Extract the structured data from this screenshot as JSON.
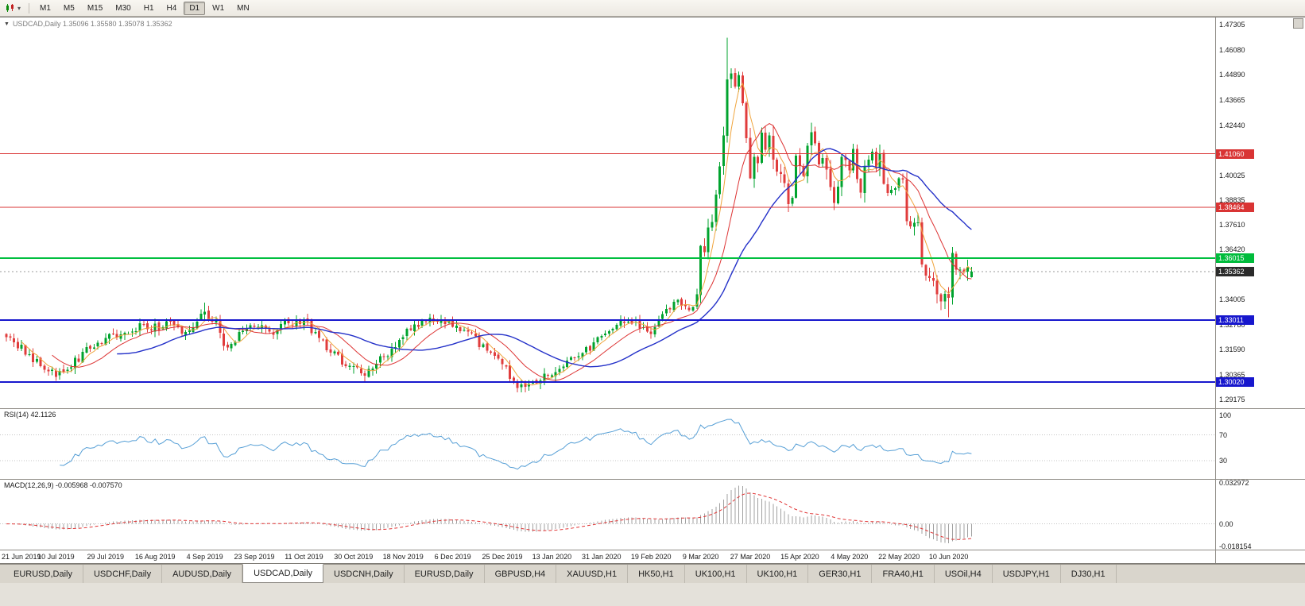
{
  "toolbar": {
    "timeframes": [
      "M1",
      "M5",
      "M15",
      "M30",
      "H1",
      "H4",
      "D1",
      "W1",
      "MN"
    ],
    "active_timeframe": "D1"
  },
  "chart": {
    "title_text": "USDCAD,Daily 1.35096 1.35580 1.35078 1.35362",
    "symbol": "USDCAD",
    "period": "Daily",
    "open": "1.35096",
    "high": "1.35580",
    "low": "1.35078",
    "close": "1.35362"
  },
  "price_axis": {
    "ticks": [
      "1.47305",
      "1.46080",
      "1.44890",
      "1.43665",
      "1.42440",
      "1.40025",
      "1.38835",
      "1.37610",
      "1.36420",
      "1.34005",
      "1.32780",
      "1.31590",
      "1.30365",
      "1.29175"
    ],
    "line_labels": [
      {
        "text": "1.41060",
        "value": 1.4106,
        "color": "#d93434"
      },
      {
        "text": "1.38464",
        "value": 1.38464,
        "color": "#d93434"
      },
      {
        "text": "1.36015",
        "value": 1.36015,
        "color": "#00bc3c"
      },
      {
        "text": "1.33011",
        "value": 1.33011,
        "color": "#1717cd"
      },
      {
        "text": "1.30020",
        "value": 1.3002,
        "color": "#1717cd"
      }
    ],
    "current": {
      "text": "1.35362",
      "value": 1.35362,
      "color": "#2b2b2b"
    }
  },
  "date_axis": {
    "step_days": 13,
    "labels": [
      "21 Jun 2019",
      "10 Jul 2019",
      "29 Jul 2019",
      "16 Aug 2019",
      "4 Sep 2019",
      "23 Sep 2019",
      "11 Oct 2019",
      "30 Oct 2019",
      "18 Nov 2019",
      "6 Dec 2019",
      "25 Dec 2019",
      "13 Jan 2020",
      "31 Jan 2020",
      "19 Feb 2020",
      "9 Mar 2020",
      "27 Mar 2020",
      "15 Apr 2020",
      "4 May 2020",
      "22 May 2020",
      "10 Jun 2020"
    ]
  },
  "rsi": {
    "label": "RSI(14) 42.1126",
    "period": 14,
    "current": 42.1126,
    "color": "#569fd6",
    "levels": [
      70,
      30
    ],
    "axis_labels": [
      {
        "text": "100",
        "value": 100
      },
      {
        "text": "70",
        "value": 70
      },
      {
        "text": "30",
        "value": 30
      }
    ]
  },
  "macd": {
    "label": "MACD(12,26,9) -0.005968 -0.007570",
    "main": -0.005968,
    "signal": -0.00757,
    "max": 0.032972,
    "min": -0.018154,
    "hist_color": "#a0a0a0",
    "signal_color": "#e03434",
    "axis_labels": [
      {
        "text": "0.032972",
        "value": 0.032972
      },
      {
        "text": "0.00",
        "value": 0
      },
      {
        "text": "-0.018154",
        "value": -0.018154
      }
    ]
  },
  "tabs": {
    "active_index": 3,
    "items": [
      "EURUSD,Daily",
      "USDCHF,Daily",
      "AUDUSD,Daily",
      "USDCAD,Daily",
      "USDCNH,Daily",
      "EURUSD,Daily",
      "GBPUSD,H4",
      "XAUUSD,H1",
      "HK50,H1",
      "UK100,H1",
      "UK100,H1",
      "GER30,H1",
      "FRA40,H1",
      "USOil,H4",
      "USDJPY,H1",
      "DJ30,H1"
    ]
  },
  "chart_data": {
    "type": "candlestick",
    "title": "USDCAD Daily",
    "symbol": "USDCAD",
    "timeframe": "Daily",
    "days": 254,
    "seed": 20200619,
    "price_top": 1.4765,
    "price_bottom": 1.2875,
    "current_price": 1.35362,
    "last_ohlc": {
      "open": 1.35096,
      "high": 1.3558,
      "low": 1.35078,
      "close": 1.35362
    },
    "colors": {
      "up": "#00a32e",
      "down": "#e03c3c",
      "current_line": "#9a9a9a"
    },
    "anchors": [
      [
        0,
        1.322
      ],
      [
        4,
        1.3165
      ],
      [
        9,
        1.3075
      ],
      [
        13,
        1.3045
      ],
      [
        18,
        1.3105
      ],
      [
        22,
        1.3165
      ],
      [
        26,
        1.321
      ],
      [
        31,
        1.323
      ],
      [
        35,
        1.328
      ],
      [
        39,
        1.3265
      ],
      [
        43,
        1.329
      ],
      [
        47,
        1.3245
      ],
      [
        52,
        1.333
      ],
      [
        55,
        1.3285
      ],
      [
        57,
        1.317
      ],
      [
        61,
        1.323
      ],
      [
        65,
        1.327
      ],
      [
        69,
        1.324
      ],
      [
        74,
        1.3295
      ],
      [
        78,
        1.33
      ],
      [
        82,
        1.321
      ],
      [
        86,
        1.313
      ],
      [
        91,
        1.306
      ],
      [
        94,
        1.3045
      ],
      [
        98,
        1.3115
      ],
      [
        101,
        1.316
      ],
      [
        104,
        1.323
      ],
      [
        108,
        1.329
      ],
      [
        112,
        1.331
      ],
      [
        117,
        1.328
      ],
      [
        121,
        1.324
      ],
      [
        125,
        1.317
      ],
      [
        130,
        1.309
      ],
      [
        133,
        1.299
      ],
      [
        136,
        1.2965
      ],
      [
        139,
        1.301
      ],
      [
        143,
        1.3055
      ],
      [
        147,
        1.3105
      ],
      [
        151,
        1.314
      ],
      [
        156,
        1.322
      ],
      [
        160,
        1.328
      ],
      [
        164,
        1.33
      ],
      [
        167,
        1.326
      ],
      [
        169,
        1.3225
      ],
      [
        172,
        1.331
      ],
      [
        175,
        1.34
      ],
      [
        177,
        1.337
      ],
      [
        179,
        1.333
      ],
      [
        181,
        1.3425
      ],
      [
        182,
        1.366
      ],
      [
        183,
        1.363
      ],
      [
        184,
        1.3745
      ],
      [
        185,
        1.378
      ],
      [
        186,
        1.391
      ],
      [
        187,
        1.405
      ],
      [
        188,
        1.42
      ],
      [
        189,
        1.446
      ],
      [
        190,
        1.449
      ],
      [
        191,
        1.443
      ],
      [
        192,
        1.4486
      ],
      [
        193,
        1.435
      ],
      [
        194,
        1.418
      ],
      [
        195,
        1.399
      ],
      [
        196,
        1.409
      ],
      [
        197,
        1.4062
      ],
      [
        198,
        1.421
      ],
      [
        199,
        1.413
      ],
      [
        200,
        1.42
      ],
      [
        201,
        1.408
      ],
      [
        202,
        1.402
      ],
      [
        203,
        1.401
      ],
      [
        204,
        1.396
      ],
      [
        205,
        1.386
      ],
      [
        206,
        1.389
      ],
      [
        207,
        1.409
      ],
      [
        208,
        1.404
      ],
      [
        209,
        1.4
      ],
      [
        210,
        1.415
      ],
      [
        211,
        1.421
      ],
      [
        212,
        1.416
      ],
      [
        213,
        1.406
      ],
      [
        214,
        1.409
      ],
      [
        215,
        1.403
      ],
      [
        216,
        1.395
      ],
      [
        217,
        1.387
      ],
      [
        218,
        1.394
      ],
      [
        219,
        1.409
      ],
      [
        220,
        1.407
      ],
      [
        221,
        1.403
      ],
      [
        222,
        1.413
      ],
      [
        223,
        1.398
      ],
      [
        224,
        1.392
      ],
      [
        225,
        1.404
      ],
      [
        226,
        1.408
      ],
      [
        227,
        1.411
      ],
      [
        228,
        1.403
      ],
      [
        229,
        1.411
      ],
      [
        230,
        1.396
      ],
      [
        231,
        1.392
      ],
      [
        232,
        1.393
      ],
      [
        233,
        1.394
      ],
      [
        234,
        1.399
      ],
      [
        235,
        1.398
      ],
      [
        236,
        1.378
      ],
      [
        237,
        1.375
      ],
      [
        238,
        1.377
      ],
      [
        239,
        1.378
      ],
      [
        240,
        1.357
      ],
      [
        241,
        1.352
      ],
      [
        242,
        1.35
      ],
      [
        243,
        1.349
      ],
      [
        244,
        1.342
      ],
      [
        245,
        1.339
      ],
      [
        246,
        1.343
      ],
      [
        247,
        1.341
      ],
      [
        248,
        1.362
      ],
      [
        249,
        1.354
      ],
      [
        250,
        1.3539
      ],
      [
        251,
        1.3537
      ],
      [
        252,
        1.356
      ],
      [
        253,
        1.35362
      ]
    ],
    "spikes": [
      {
        "day": 52,
        "high": 1.3385
      },
      {
        "day": 91,
        "low": 1.3042
      },
      {
        "day": 136,
        "low": 1.2951
      },
      {
        "day": 189,
        "high": 1.4668
      },
      {
        "day": 247,
        "low": 1.3315
      },
      {
        "day": 253,
        "open": 1.35096,
        "high": 1.3558,
        "low": 1.35078,
        "close": 1.35362
      }
    ],
    "moving_averages": [
      {
        "period": 5,
        "color": "#f0a43c",
        "width": 1
      },
      {
        "period": 13,
        "color": "#dd3434",
        "width": 1
      },
      {
        "period": 30,
        "color": "#2431c9",
        "width": 1.4
      }
    ],
    "hlines": [
      {
        "price": 1.4106,
        "color": "#d93434",
        "width": 1
      },
      {
        "price": 1.38464,
        "color": "#d93434",
        "width": 1
      },
      {
        "price": 1.36015,
        "color": "#00bf3f",
        "width": 2
      },
      {
        "price": 1.33011,
        "color": "#1717cd",
        "width": 2
      },
      {
        "price": 1.3002,
        "color": "#1717cd",
        "width": 2
      }
    ]
  }
}
